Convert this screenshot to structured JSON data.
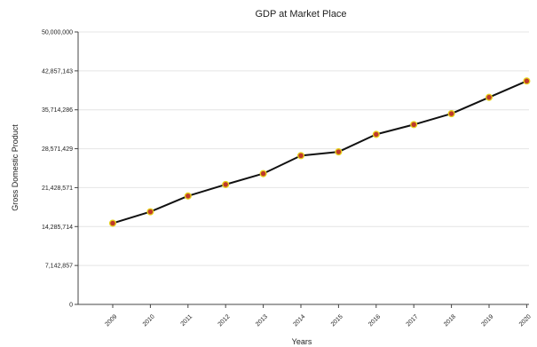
{
  "chart_data": {
    "type": "line",
    "title": "GDP at Market Place",
    "xlabel": "Years",
    "ylabel": "Gross Domestic Product",
    "categories": [
      "2009",
      "2010",
      "2011",
      "2012",
      "2013",
      "2014",
      "2015",
      "2016",
      "2017",
      "2018",
      "2019",
      "2020"
    ],
    "y_ticks": [
      "0",
      "7,142,857",
      "14,285,714",
      "21,428,571",
      "28,571,429",
      "35,714,286",
      "42,857,143",
      "50,000,000"
    ],
    "ylim": [
      0,
      50000000
    ],
    "grid": true,
    "legend": "none",
    "series": [
      {
        "values": [
          14900000,
          17000000,
          19900000,
          22000000,
          24000000,
          27300000,
          28000000,
          31200000,
          33000000,
          35000000,
          38000000,
          41000000
        ],
        "color": "#111111",
        "marker_color": "#c0392b",
        "marker_edge": "#e6d21a"
      }
    ]
  }
}
